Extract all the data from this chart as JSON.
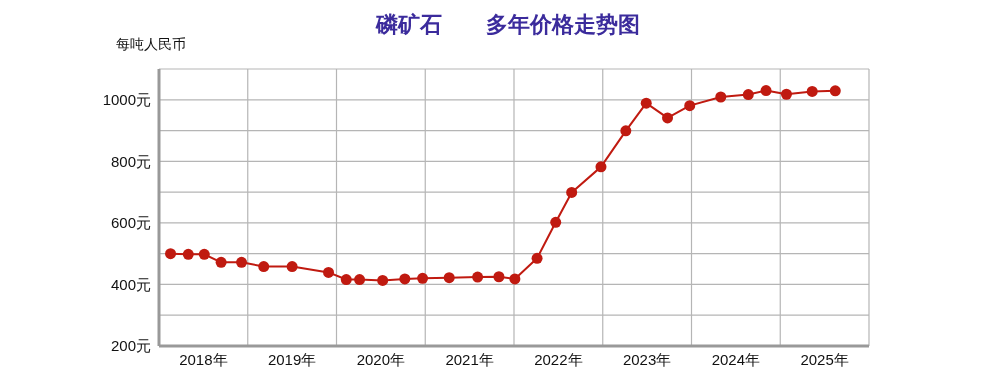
{
  "chart_data": {
    "type": "line",
    "title": "磷矿石　　多年价格走势图",
    "ylabel": "每吨人民币",
    "x": [
      2018.13,
      2018.33,
      2018.51,
      2018.7,
      2018.93,
      2019.18,
      2019.5,
      2019.91,
      2020.11,
      2020.26,
      2020.52,
      2020.77,
      2020.97,
      2021.27,
      2021.59,
      2021.83,
      2022.01,
      2022.26,
      2022.47,
      2022.65,
      2022.98,
      2023.26,
      2023.49,
      2023.73,
      2023.98,
      2024.33,
      2024.64,
      2024.84,
      2025.07,
      2025.36,
      2025.62
    ],
    "series": [
      {
        "color": "#c01a10",
        "values": [
          500,
          498,
          498,
          472,
          472,
          458,
          458,
          439,
          416,
          416,
          413,
          418,
          420,
          422,
          424,
          425,
          418,
          485,
          602,
          699,
          782,
          899,
          989,
          941,
          981,
          1009,
          1017,
          1030,
          1018,
          1027,
          1029
        ]
      }
    ],
    "xlim": [
      2018,
      2026
    ],
    "xticks": [
      {
        "value": 2018,
        "label": null
      },
      {
        "value": 2018.5,
        "label": "2018年"
      },
      {
        "value": 2019,
        "label": null
      },
      {
        "value": 2019.5,
        "label": "2019年"
      },
      {
        "value": 2020,
        "label": null
      },
      {
        "value": 2020.5,
        "label": "2020年"
      },
      {
        "value": 2021,
        "label": null
      },
      {
        "value": 2021.5,
        "label": "2021年"
      },
      {
        "value": 2022,
        "label": null
      },
      {
        "value": 2022.5,
        "label": "2022年"
      },
      {
        "value": 2023,
        "label": null
      },
      {
        "value": 2023.5,
        "label": "2023年"
      },
      {
        "value": 2024,
        "label": null
      },
      {
        "value": 2024.5,
        "label": "2024年"
      },
      {
        "value": 2025,
        "label": null
      },
      {
        "value": 2025.5,
        "label": "2025年"
      },
      {
        "value": 2026,
        "label": null
      }
    ],
    "ylim": [
      200,
      1100
    ],
    "yticks": [
      {
        "value": 200,
        "label": "200元"
      },
      {
        "value": 300,
        "label": null
      },
      {
        "value": 400,
        "label": "400元"
      },
      {
        "value": 500,
        "label": null
      },
      {
        "value": 600,
        "label": "600元"
      },
      {
        "value": 700,
        "label": null
      },
      {
        "value": 800,
        "label": "800元"
      },
      {
        "value": 900,
        "label": null
      },
      {
        "value": 1000,
        "label": "1000元"
      },
      {
        "value": 1100,
        "label": null
      }
    ],
    "grid": true,
    "marker": "circle",
    "line_style": "solid",
    "legend": false
  }
}
